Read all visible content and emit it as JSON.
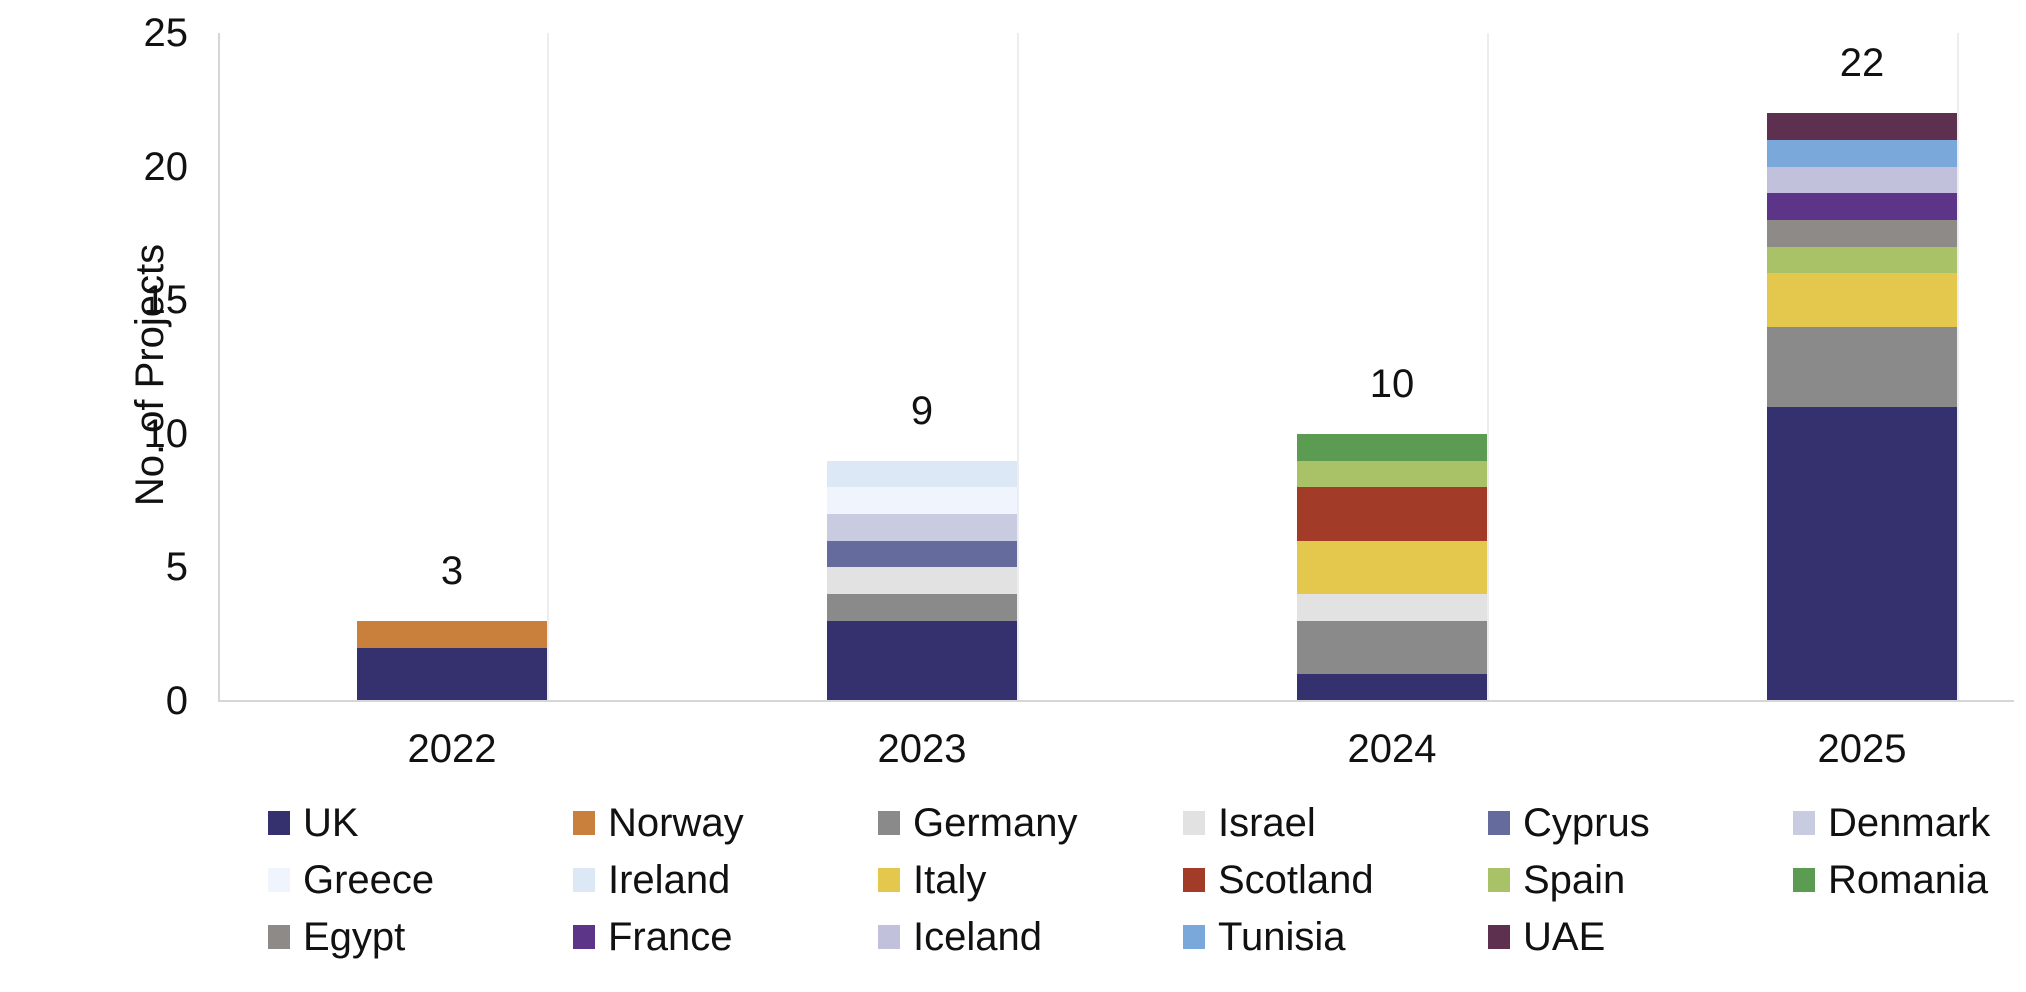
{
  "chart_data": {
    "type": "bar",
    "subtype": "stacked-vertical",
    "title": "",
    "ylabel": "No. of Projects",
    "xlabel": "",
    "categories": [
      "2022",
      "2023",
      "2024",
      "2025"
    ],
    "totals": [
      3,
      9,
      10,
      22
    ],
    "ylim": [
      0,
      25
    ],
    "yticks": [
      0,
      5,
      10,
      15,
      20,
      25
    ],
    "grid": "off",
    "legend_position": "bottom",
    "axis_line_color": "#d6d6d6",
    "category_line_color": "#ededf1",
    "series": [
      {
        "name": "UK",
        "color": "#35316f",
        "values": [
          2,
          3,
          1,
          11
        ]
      },
      {
        "name": "Norway",
        "color": "#c8803c",
        "values": [
          1,
          0,
          0,
          0
        ]
      },
      {
        "name": "Germany",
        "color": "#8a8a8a",
        "values": [
          0,
          1,
          2,
          3
        ]
      },
      {
        "name": "Israel",
        "color": "#e3e2e2",
        "values": [
          0,
          1,
          1,
          0
        ]
      },
      {
        "name": "Cyprus",
        "color": "#666b9d",
        "values": [
          0,
          1,
          0,
          0
        ]
      },
      {
        "name": "Denmark",
        "color": "#c9cce0",
        "values": [
          0,
          1,
          0,
          0
        ]
      },
      {
        "name": "Greece",
        "color": "#f0f4fc",
        "values": [
          0,
          1,
          0,
          0
        ]
      },
      {
        "name": "Ireland",
        "color": "#dde8f6",
        "values": [
          0,
          1,
          0,
          0
        ]
      },
      {
        "name": "Italy",
        "color": "#e3c84d",
        "values": [
          0,
          0,
          2,
          2
        ]
      },
      {
        "name": "Scotland",
        "color": "#a23b27",
        "values": [
          0,
          0,
          2,
          0
        ]
      },
      {
        "name": "Spain",
        "color": "#a9c167",
        "values": [
          0,
          0,
          1,
          1
        ]
      },
      {
        "name": "Romania",
        "color": "#5b9b52",
        "values": [
          0,
          0,
          1,
          0
        ]
      },
      {
        "name": "Egypt",
        "color": "#8d8a88",
        "values": [
          0,
          0,
          0,
          1
        ]
      },
      {
        "name": "France",
        "color": "#5d3588",
        "values": [
          0,
          0,
          0,
          1
        ]
      },
      {
        "name": "Iceland",
        "color": "#c2c1dc",
        "values": [
          0,
          0,
          0,
          1
        ]
      },
      {
        "name": "Tunisia",
        "color": "#7aa8da",
        "values": [
          0,
          0,
          0,
          1
        ]
      },
      {
        "name": "UAE",
        "color": "#5e3050",
        "values": [
          0,
          0,
          0,
          1
        ]
      }
    ]
  }
}
